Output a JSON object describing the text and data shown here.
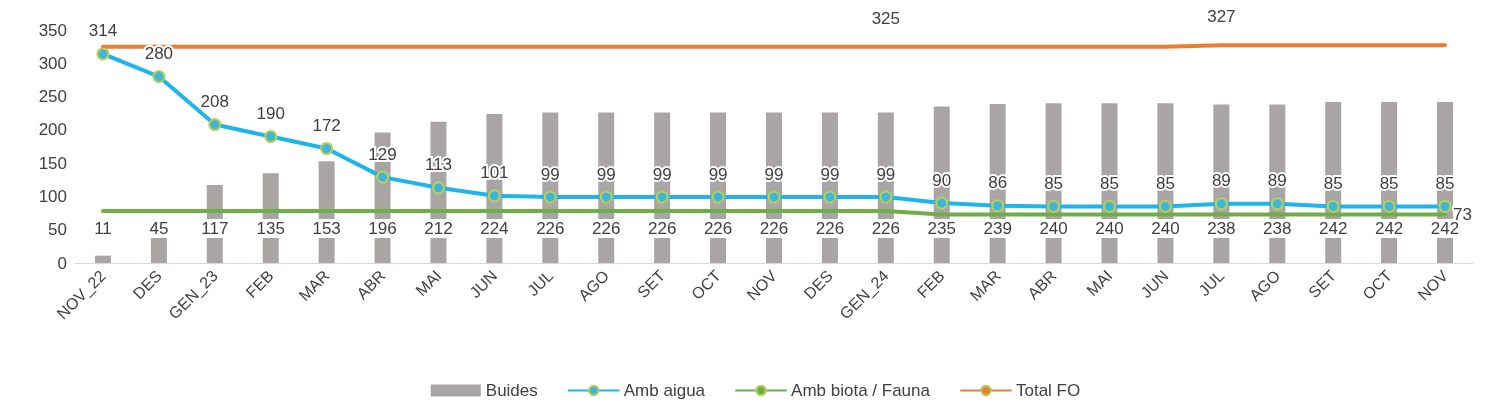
{
  "chart_data": {
    "type": "bar",
    "categories": [
      "NOV_22",
      "DES",
      "GEN_23",
      "FEB",
      "MAR",
      "ABR",
      "MAI",
      "JUN",
      "JUL",
      "AGO",
      "SET",
      "OCT",
      "NOV",
      "DES",
      "GEN_24",
      "FEB",
      "MAR",
      "ABR",
      "MAI",
      "JUN",
      "JUL",
      "AGO",
      "SET",
      "OCT",
      "NOV"
    ],
    "series": [
      {
        "name": "Buides",
        "color": "#aaa5a5",
        "values": [
          11,
          45,
          117,
          135,
          153,
          196,
          212,
          224,
          226,
          226,
          226,
          226,
          226,
          226,
          226,
          235,
          239,
          240,
          240,
          240,
          238,
          238,
          242,
          242,
          242
        ],
        "value_labels": [
          "11",
          "45",
          "117",
          "135",
          "153",
          "196",
          "212",
          "224",
          "226",
          "226",
          "226",
          "226",
          "226",
          "226",
          "226",
          "235",
          "239",
          "240",
          "240",
          "240",
          "238",
          "238",
          "242",
          "242",
          "242"
        ]
      },
      {
        "name": "Amb aigua",
        "type": "line",
        "color": "#1fb4ea",
        "marker": "circle",
        "values": [
          314,
          280,
          208,
          190,
          172,
          129,
          113,
          101,
          99,
          99,
          99,
          99,
          99,
          99,
          99,
          90,
          86,
          85,
          85,
          85,
          89,
          89,
          85,
          85,
          85
        ],
        "value_labels": [
          "314",
          "280",
          "208",
          "190",
          "172",
          "129",
          "113",
          "101",
          "99",
          "99",
          "99",
          "99",
          "99",
          "99",
          "99",
          "90",
          "86",
          "85",
          "85",
          "85",
          "89",
          "89",
          "85",
          "85",
          "85"
        ]
      },
      {
        "name": "Amb biota / Fauna",
        "type": "line",
        "color": "#70ad47",
        "marker": "none",
        "values": [
          78,
          78,
          78,
          78,
          78,
          78,
          78,
          78,
          78,
          78,
          78,
          78,
          78,
          78,
          78,
          73,
          73,
          73,
          73,
          73,
          73,
          73,
          73,
          73,
          73
        ],
        "value_labels": [
          null,
          null,
          null,
          null,
          null,
          null,
          null,
          null,
          null,
          null,
          null,
          null,
          null,
          null,
          null,
          null,
          null,
          null,
          null,
          null,
          null,
          null,
          null,
          null,
          "73"
        ]
      },
      {
        "name": "Total FO",
        "type": "line",
        "color": "#ed7d31",
        "marker": "none",
        "values": [
          325,
          325,
          325,
          325,
          325,
          325,
          325,
          325,
          325,
          325,
          325,
          325,
          325,
          325,
          325,
          325,
          325,
          325,
          325,
          325,
          327,
          327,
          327,
          327,
          327
        ],
        "value_labels": [
          null,
          null,
          null,
          null,
          null,
          null,
          null,
          null,
          null,
          null,
          null,
          null,
          null,
          null,
          "325",
          null,
          null,
          null,
          null,
          null,
          "327",
          null,
          null,
          null,
          null
        ]
      }
    ],
    "ylim": [
      0,
      350
    ],
    "yticks": [
      0,
      50,
      100,
      150,
      200,
      250,
      300,
      350
    ],
    "grid": false,
    "legend": "bottom",
    "line_style": "solid"
  }
}
